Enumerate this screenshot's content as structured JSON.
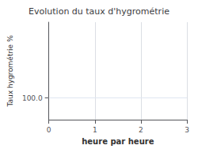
{
  "chart_data": {
    "type": "line",
    "title": "Evolution du taux d'hygrométrie",
    "xlabel": "heure par heure",
    "ylabel": "Taux hygrométrie %",
    "xlim": [
      0,
      3
    ],
    "xticks": [
      0,
      1,
      2,
      3
    ],
    "ylim": [
      99.0,
      103.5
    ],
    "yticks": [
      {
        "value": 100.0,
        "label": "100.0"
      }
    ],
    "grid": true
  }
}
